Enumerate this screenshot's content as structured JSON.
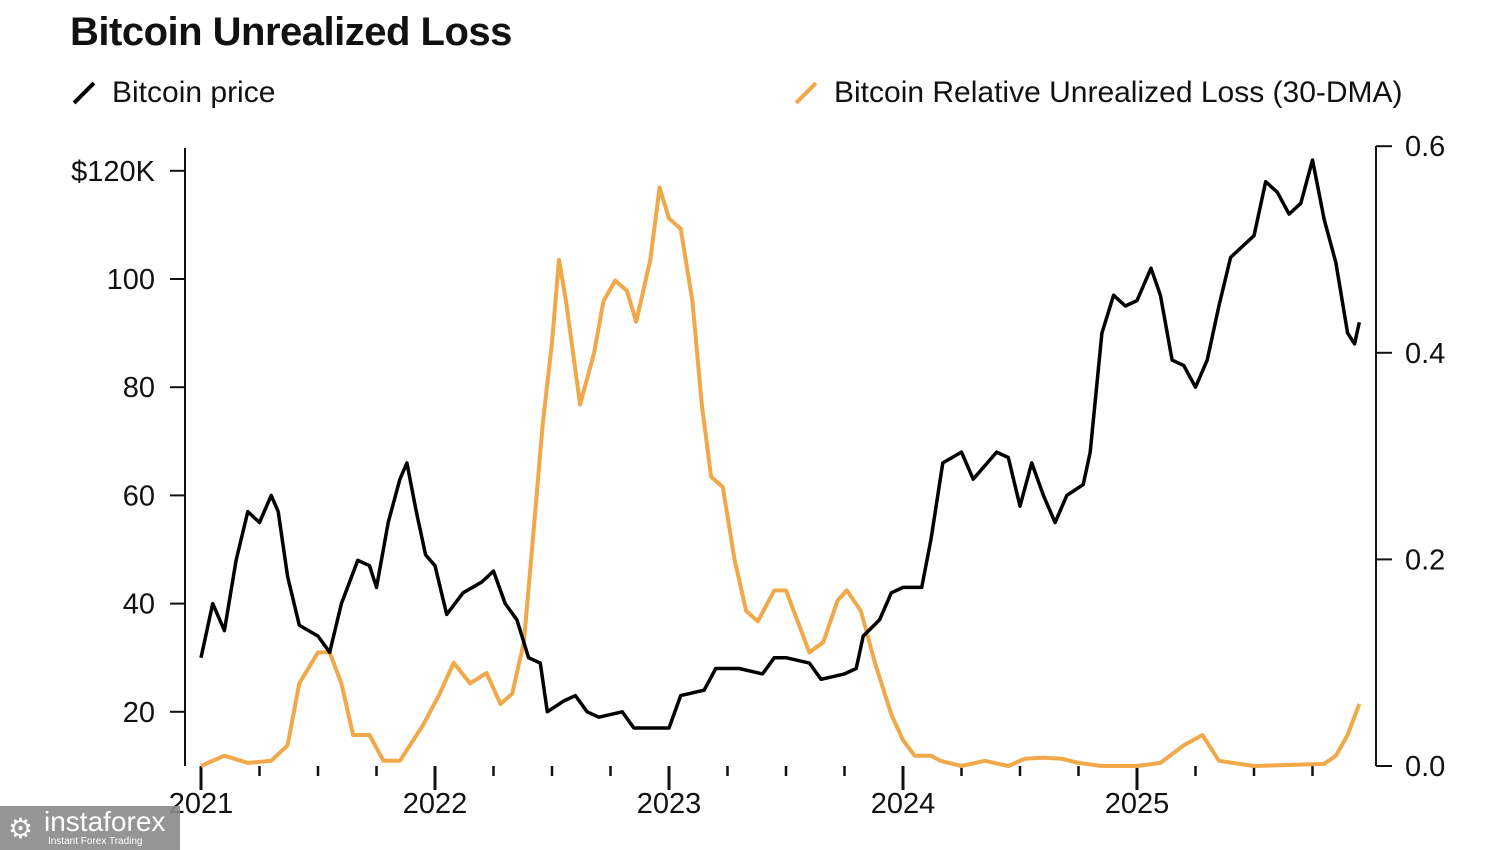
{
  "chart_data": {
    "type": "line",
    "title": "Bitcoin Unrealized Loss",
    "legend_position": "top",
    "grid": false,
    "x_ticks": [
      "2021",
      "2022",
      "2023",
      "2024",
      "2025"
    ],
    "xlim": [
      2021,
      2026
    ],
    "left_axis": {
      "ticks": [
        "$120K",
        "100",
        "80",
        "60",
        "40",
        "20"
      ],
      "tick_values": [
        120,
        100,
        80,
        60,
        40,
        20
      ],
      "ylim": [
        10,
        124
      ]
    },
    "right_axis": {
      "ticks": [
        "0.6",
        "0.4",
        "0.2",
        "0.0"
      ],
      "tick_values": [
        0.6,
        0.4,
        0.2,
        0.0
      ],
      "ylim": [
        0,
        0.6
      ]
    },
    "series": [
      {
        "name": "Bitcoin price",
        "axis": "left",
        "color": "#000000",
        "x": [
          2021.0,
          2021.05,
          2021.1,
          2021.15,
          2021.2,
          2021.25,
          2021.3,
          2021.33,
          2021.37,
          2021.42,
          2021.5,
          2021.55,
          2021.6,
          2021.67,
          2021.72,
          2021.75,
          2021.8,
          2021.85,
          2021.88,
          2021.92,
          2021.96,
          2022.0,
          2022.05,
          2022.12,
          2022.2,
          2022.25,
          2022.3,
          2022.35,
          2022.4,
          2022.45,
          2022.48,
          2022.55,
          2022.6,
          2022.65,
          2022.7,
          2022.8,
          2022.85,
          2022.95,
          2023.0,
          2023.05,
          2023.15,
          2023.2,
          2023.3,
          2023.4,
          2023.45,
          2023.5,
          2023.6,
          2023.65,
          2023.75,
          2023.8,
          2023.83,
          2023.9,
          2023.95,
          2024.0,
          2024.08,
          2024.12,
          2024.17,
          2024.25,
          2024.3,
          2024.4,
          2024.45,
          2024.5,
          2024.55,
          2024.6,
          2024.65,
          2024.7,
          2024.77,
          2024.8,
          2024.85,
          2024.9,
          2024.95,
          2025.0,
          2025.06,
          2025.1,
          2025.15,
          2025.2,
          2025.25,
          2025.3,
          2025.35,
          2025.4,
          2025.45,
          2025.5,
          2025.55,
          2025.6,
          2025.65,
          2025.7,
          2025.75,
          2025.8,
          2025.85,
          2025.9,
          2025.93,
          2025.95
        ],
        "y": [
          30,
          40,
          35,
          48,
          57,
          55,
          60,
          57,
          45,
          36,
          34,
          31,
          40,
          48,
          47,
          43,
          55,
          63,
          66,
          57,
          49,
          47,
          38,
          42,
          44,
          46,
          40,
          37,
          30,
          29,
          20,
          22,
          23,
          20,
          19,
          20,
          17,
          17,
          17,
          23,
          24,
          28,
          28,
          27,
          30,
          30,
          29,
          26,
          27,
          28,
          34,
          37,
          42,
          43,
          43,
          52,
          66,
          68,
          63,
          68,
          67,
          58,
          66,
          60,
          55,
          60,
          62,
          68,
          90,
          97,
          95,
          96,
          102,
          97,
          85,
          84,
          80,
          85,
          95,
          104,
          106,
          108,
          118,
          116,
          112,
          114,
          122,
          111,
          103,
          90,
          88,
          92
        ]
      },
      {
        "name": "Bitcoin Relative Unrealized Loss (30-DMA)",
        "axis": "right",
        "color": "#F0A849",
        "x": [
          2021.0,
          2021.1,
          2021.2,
          2021.3,
          2021.37,
          2021.42,
          2021.5,
          2021.55,
          2021.6,
          2021.65,
          2021.72,
          2021.78,
          2021.85,
          2021.95,
          2022.02,
          2022.08,
          2022.15,
          2022.22,
          2022.28,
          2022.33,
          2022.38,
          2022.43,
          2022.46,
          2022.5,
          2022.53,
          2022.56,
          2022.62,
          2022.68,
          2022.72,
          2022.77,
          2022.82,
          2022.86,
          2022.92,
          2022.96,
          2023.0,
          2023.05,
          2023.1,
          2023.14,
          2023.18,
          2023.23,
          2023.28,
          2023.33,
          2023.38,
          2023.45,
          2023.5,
          2023.55,
          2023.6,
          2023.66,
          2023.72,
          2023.76,
          2023.82,
          2023.88,
          2023.95,
          2024.0,
          2024.05,
          2024.12,
          2024.16,
          2024.25,
          2024.35,
          2024.45,
          2024.52,
          2024.6,
          2024.68,
          2024.75,
          2024.85,
          2025.0,
          2025.1,
          2025.2,
          2025.28,
          2025.35,
          2025.5,
          2025.8,
          2025.85,
          2025.9,
          2025.95
        ],
        "y": [
          0.0,
          0.01,
          0.003,
          0.005,
          0.02,
          0.08,
          0.11,
          0.11,
          0.08,
          0.03,
          0.03,
          0.005,
          0.005,
          0.04,
          0.07,
          0.1,
          0.08,
          0.09,
          0.06,
          0.07,
          0.12,
          0.25,
          0.33,
          0.41,
          0.49,
          0.45,
          0.35,
          0.4,
          0.45,
          0.47,
          0.46,
          0.43,
          0.49,
          0.56,
          0.53,
          0.52,
          0.45,
          0.35,
          0.28,
          0.27,
          0.2,
          0.15,
          0.14,
          0.17,
          0.17,
          0.14,
          0.11,
          0.12,
          0.16,
          0.17,
          0.15,
          0.1,
          0.05,
          0.025,
          0.01,
          0.01,
          0.005,
          0.0,
          0.005,
          0.0,
          0.007,
          0.008,
          0.007,
          0.003,
          0.0,
          0.0,
          0.003,
          0.02,
          0.03,
          0.005,
          0.0,
          0.002,
          0.01,
          0.03,
          0.06
        ]
      }
    ]
  },
  "watermark": {
    "brand": "instaforex",
    "tagline": "Instant Forex Trading"
  }
}
